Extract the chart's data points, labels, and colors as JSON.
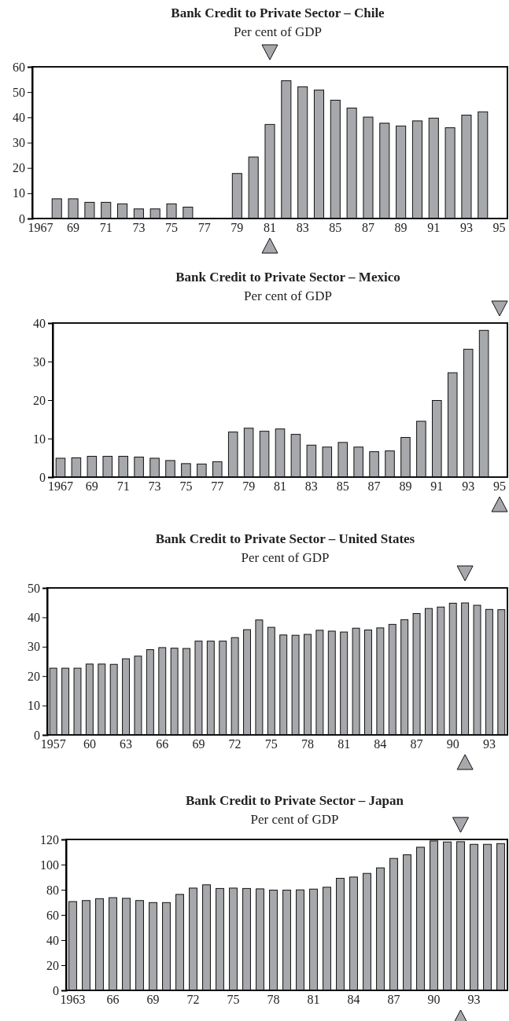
{
  "chart_data": [
    {
      "type": "bar",
      "title": "Bank Credit to Private Sector – Chile",
      "subtitle": "Per cent of GDP",
      "categories": [
        "1967",
        null,
        "69",
        null,
        "71",
        null,
        "73",
        null,
        "75",
        null,
        "77",
        null,
        "79",
        null,
        "81",
        null,
        "83",
        null,
        "85",
        null,
        "87",
        null,
        "89",
        null,
        "91",
        null,
        "93",
        null,
        "95"
      ],
      "series": [
        {
          "color": "#a6a8ab",
          "values": [
            null,
            7.8,
            7.8,
            6.4,
            6.4,
            5.8,
            3.8,
            3.8,
            5.8,
            4.5,
            null,
            null,
            17.8,
            24.3,
            37.2,
            54.5,
            52.1,
            50.8,
            46.8,
            43.7,
            40.1,
            37.7,
            36.6,
            38.6,
            39.7,
            35.9,
            40.9,
            42.2,
            null
          ]
        }
      ],
      "ylim": [
        0,
        60
      ],
      "yticks": [
        0,
        10,
        20,
        30,
        40,
        50,
        60
      ]
    },
    {
      "type": "bar",
      "title": "Bank Credit to Private Sector – Mexico",
      "subtitle": "Per cent of GDP",
      "categories": [
        "1967",
        null,
        "69",
        null,
        "71",
        null,
        "73",
        null,
        "75",
        null,
        "77",
        null,
        "79",
        null,
        "81",
        null,
        "83",
        null,
        "85",
        null,
        "87",
        null,
        "89",
        null,
        "91",
        null,
        "93",
        null,
        "95"
      ],
      "series": [
        {
          "color": "#a6a8ab",
          "values": [
            4.9,
            5.0,
            5.4,
            5.4,
            5.4,
            5.2,
            4.9,
            4.3,
            3.5,
            3.4,
            4.0,
            11.7,
            12.7,
            11.9,
            12.5,
            11.1,
            8.3,
            7.8,
            9.0,
            7.8,
            6.6,
            6.8,
            10.3,
            14.5,
            19.9,
            27.1,
            33.2,
            38.1,
            null
          ]
        }
      ],
      "ylim": [
        0,
        40
      ],
      "yticks": [
        0,
        10,
        20,
        30,
        40
      ]
    },
    {
      "type": "bar",
      "title": "Bank Credit to Private Sector – United States",
      "subtitle": "Per cent of GDP",
      "categories": [
        "1957",
        null,
        null,
        "60",
        null,
        null,
        "63",
        null,
        null,
        "66",
        null,
        null,
        "69",
        null,
        null,
        "72",
        null,
        null,
        "75",
        null,
        null,
        "78",
        null,
        null,
        "81",
        null,
        null,
        "84",
        null,
        null,
        "87",
        null,
        null,
        "90",
        null,
        null,
        "93",
        null
      ],
      "series": [
        {
          "color": "#a6a8ab",
          "values": [
            22.7,
            22.7,
            22.7,
            24.1,
            24.1,
            24.0,
            25.9,
            26.8,
            29.0,
            29.7,
            29.5,
            29.4,
            31.9,
            31.9,
            31.9,
            33.1,
            35.8,
            39.1,
            36.6,
            34.0,
            33.9,
            34.2,
            35.6,
            35.3,
            35.0,
            36.3,
            35.7,
            36.4,
            37.6,
            39.2,
            41.3,
            43.0,
            43.5,
            44.8,
            44.9,
            44.1,
            42.7,
            42.6
          ]
        }
      ],
      "ylim": [
        0,
        50
      ],
      "yticks": [
        0,
        10,
        20,
        30,
        40,
        50
      ]
    },
    {
      "type": "bar",
      "title": "Bank Credit to Private Sector – Japan",
      "subtitle": "Per cent of GDP",
      "categories": [
        "1963",
        null,
        null,
        "66",
        null,
        null,
        "69",
        null,
        null,
        "72",
        null,
        null,
        "75",
        null,
        null,
        "78",
        null,
        null,
        "81",
        null,
        null,
        "84",
        null,
        null,
        "87",
        null,
        null,
        "90",
        null,
        null,
        "93",
        null,
        null
      ],
      "series": [
        {
          "color": "#a6a8ab",
          "values": [
            70.6,
            71.4,
            72.9,
            73.7,
            73.2,
            71.4,
            69.8,
            69.8,
            76.3,
            81.3,
            83.9,
            81.0,
            81.3,
            81.0,
            80.7,
            79.7,
            79.7,
            79.9,
            80.5,
            82.0,
            89.1,
            90.1,
            93.0,
            97.4,
            104.9,
            107.8,
            113.8,
            118.8,
            118.0,
            118.2,
            116.1,
            116.1,
            116.7
          ]
        }
      ],
      "ylim": [
        0,
        120
      ],
      "yticks": [
        0,
        20,
        40,
        60,
        80,
        100,
        120
      ]
    }
  ]
}
